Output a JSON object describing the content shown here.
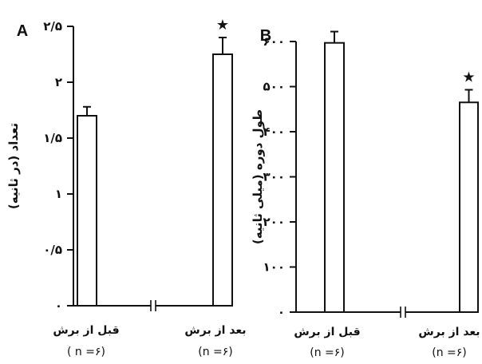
{
  "chart_data": [
    {
      "type": "bar",
      "panel_label": "A",
      "ylabel": "تعداد (در ثانیه)",
      "ylim": [
        0,
        2.5
      ],
      "yticks": [
        0,
        0.5,
        1,
        1.5,
        2,
        2.5
      ],
      "ytick_labels": [
        "٠",
        "٠/۵",
        "١",
        "١/۵",
        "٢",
        "٢/۵"
      ],
      "axis_break": true,
      "categories": [
        "قبل از برش",
        "بعد از برش"
      ],
      "n_labels": [
        "( n =۶)",
        "(n =۶)"
      ],
      "values": [
        1.7,
        2.25
      ],
      "errors": [
        0.08,
        0.15
      ],
      "significance": [
        "",
        "★"
      ]
    },
    {
      "type": "bar",
      "panel_label": "B",
      "ylabel": "طول دوره (میلی ثانیه)",
      "ylim": [
        0,
        600
      ],
      "yticks": [
        0,
        100,
        200,
        300,
        400,
        500,
        600
      ],
      "ytick_labels": [
        "٠",
        "١٠٠",
        "٢٠٠",
        "٣٠٠",
        "۴٠٠",
        "۵٠٠",
        "۶٠٠"
      ],
      "axis_break": true,
      "categories": [
        "قبل از برش",
        "بعد از برش"
      ],
      "n_labels": [
        "(n =۶)",
        "(n =۶)"
      ],
      "values": [
        597,
        465
      ],
      "errors": [
        25,
        28
      ],
      "significance": [
        "",
        "★"
      ]
    }
  ]
}
